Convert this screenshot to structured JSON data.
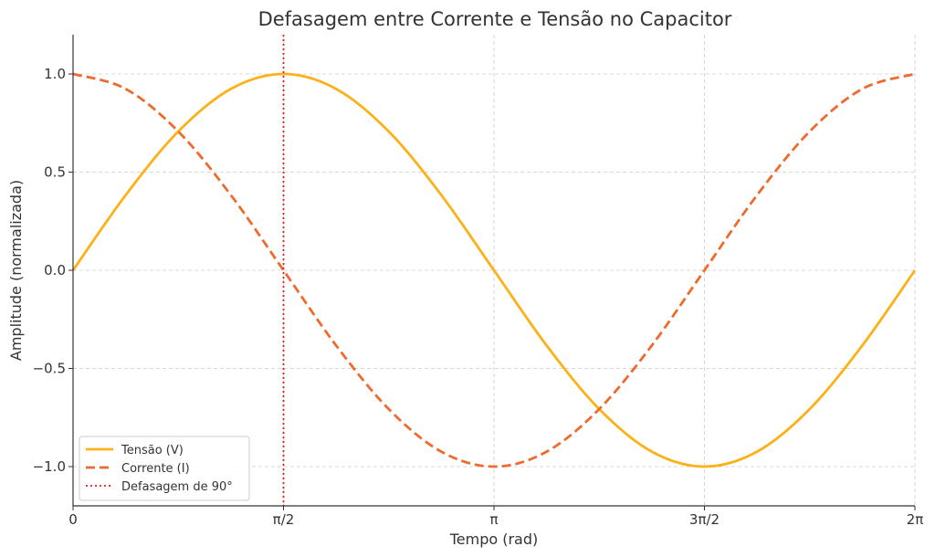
{
  "chart_data": {
    "type": "line",
    "title": "Defasagem entre Corrente e Tensão no Capacitor",
    "xlabel": "Tempo (rad)",
    "ylabel": "Amplitude (normalizada)",
    "xlim": [
      0,
      6.283185307
    ],
    "ylim": [
      -1.2,
      1.2
    ],
    "grid": true,
    "legend_position": "lower-left",
    "x_ticks": [
      {
        "value": 0,
        "label": "0"
      },
      {
        "value": 1.570796327,
        "label": "π/2"
      },
      {
        "value": 3.141592654,
        "label": "π"
      },
      {
        "value": 4.71238898,
        "label": "3π/2"
      },
      {
        "value": 6.283185307,
        "label": "2π"
      }
    ],
    "y_ticks": [
      {
        "value": 1.0,
        "label": "1.0"
      },
      {
        "value": 0.5,
        "label": "0.5"
      },
      {
        "value": 0.0,
        "label": "0.0"
      },
      {
        "value": -0.5,
        "label": "−0.5"
      },
      {
        "value": -1.0,
        "label": "−1.0"
      }
    ],
    "series": [
      {
        "name": "Tensão (V)",
        "style": "solid",
        "color": "#FBB117",
        "x": [
          0,
          0.3927,
          0.7854,
          1.1781,
          1.5708,
          1.9635,
          2.3562,
          2.7489,
          3.1416,
          3.5343,
          3.927,
          4.3197,
          4.7124,
          5.1051,
          5.4978,
          5.8905,
          6.2832
        ],
        "y": [
          0,
          0.383,
          0.707,
          0.924,
          1.0,
          0.924,
          0.707,
          0.383,
          0,
          -0.383,
          -0.707,
          -0.924,
          -1.0,
          -0.924,
          -0.707,
          -0.383,
          0
        ]
      },
      {
        "name": "Corrente (I)",
        "style": "dashed",
        "color": "#EE6A2F",
        "x": [
          0,
          0.3927,
          0.7854,
          1.1781,
          1.5708,
          1.9635,
          2.3562,
          2.7489,
          3.1416,
          3.5343,
          3.927,
          4.3197,
          4.7124,
          5.1051,
          5.4978,
          5.8905,
          6.2832
        ],
        "y": [
          1.0,
          0.924,
          0.707,
          0.383,
          0,
          -0.383,
          -0.707,
          -0.924,
          -1.0,
          -0.924,
          -0.707,
          -0.383,
          0,
          0.383,
          0.707,
          0.924,
          1.0
        ]
      }
    ],
    "annotations": [
      {
        "type": "vline",
        "name": "Defasagem de 90°",
        "x": 1.570796327,
        "style": "dotted",
        "color": "#E0201B"
      }
    ]
  }
}
